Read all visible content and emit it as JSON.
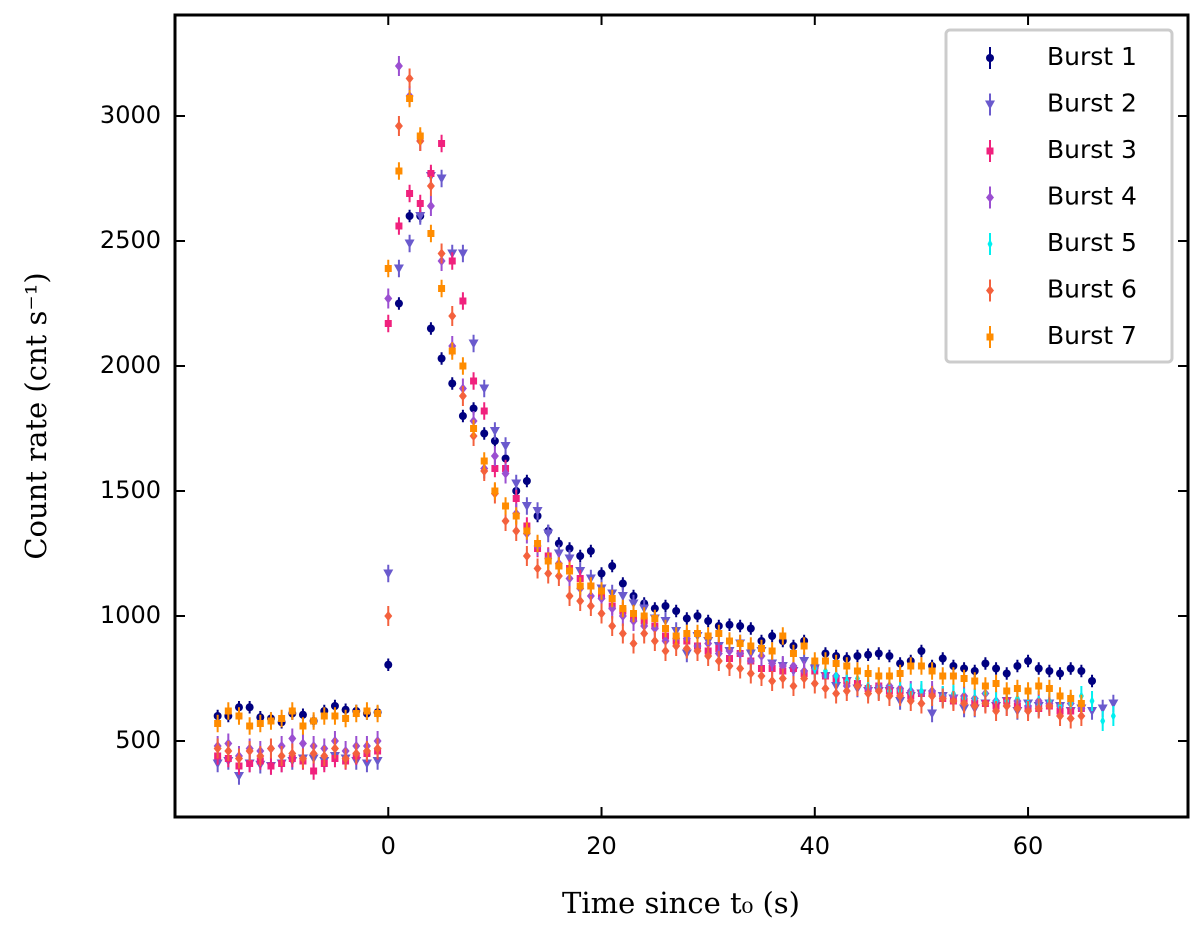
{
  "chart_data": {
    "type": "errorbar-scatter",
    "x_label": "Time since t₀ (s)",
    "y_label": "Count rate (cnt s⁻¹)",
    "xlim": [
      -20,
      75
    ],
    "ylim": [
      196,
      3404
    ],
    "xticks": [
      0,
      20,
      40,
      60
    ],
    "yticks": [
      500,
      1000,
      1500,
      2000,
      2500,
      3000
    ],
    "legend": "upper right",
    "x": [
      -16,
      -15,
      -14,
      -13,
      -12,
      -11,
      -10,
      -9,
      -8,
      -7,
      -6,
      -5,
      -4,
      -3,
      -2,
      -1,
      0,
      1,
      2,
      3,
      4,
      5,
      6,
      7,
      8,
      9,
      10,
      11,
      12,
      13,
      14,
      15,
      16,
      17,
      18,
      19,
      20,
      21,
      22,
      23,
      24,
      25,
      26,
      27,
      28,
      29,
      30,
      31,
      32,
      33,
      34,
      35,
      36,
      37,
      38,
      39,
      40,
      41,
      42,
      43,
      44,
      45,
      46,
      47,
      48,
      49,
      50,
      51,
      52,
      53,
      54,
      55,
      56,
      57,
      58,
      59,
      60,
      61,
      62,
      63,
      64,
      65,
      66,
      67,
      68
    ],
    "series": [
      {
        "name": "Burst 1",
        "color": "#000080",
        "marker": "circle",
        "yerr": 25,
        "values": [
          600,
          600,
          635,
          635,
          595,
          590,
          575,
          610,
          605,
          580,
          620,
          640,
          625,
          620,
          610,
          615,
          805,
          2250,
          2600,
          2600,
          2150,
          2030,
          1930,
          1800,
          1830,
          1730,
          1700,
          1630,
          1500,
          1540,
          1400,
          1340,
          1290,
          1270,
          1240,
          1260,
          1170,
          1200,
          1130,
          1080,
          1050,
          1030,
          1040,
          1020,
          990,
          1000,
          980,
          960,
          965,
          960,
          950,
          900,
          920,
          900,
          880,
          900,
          800,
          850,
          840,
          830,
          840,
          845,
          850,
          840,
          810,
          820,
          860,
          800,
          830,
          800,
          790,
          780,
          810,
          790,
          770,
          800,
          820,
          790,
          780,
          770,
          790,
          780,
          740,
          null,
          null
        ]
      },
      {
        "name": "Burst 2",
        "color": "#6a5acd",
        "marker": "triangle-down",
        "yerr": 35,
        "values": [
          410,
          420,
          360,
          410,
          405,
          400,
          410,
          420,
          430,
          430,
          420,
          440,
          430,
          420,
          410,
          420,
          1170,
          2390,
          2490,
          2600,
          2760,
          2750,
          2450,
          2450,
          2090,
          1910,
          1740,
          1680,
          1530,
          1440,
          1420,
          1330,
          1250,
          1230,
          1180,
          1150,
          1110,
          1090,
          1080,
          1050,
          1030,
          990,
          980,
          940,
          850,
          920,
          900,
          880,
          860,
          890,
          850,
          860,
          810,
          800,
          780,
          820,
          790,
          760,
          720,
          740,
          710,
          700,
          700,
          700,
          660,
          680,
          690,
          610,
          680,
          670,
          630,
          630,
          650,
          640,
          660,
          620,
          650,
          640,
          650,
          640,
          620,
          630,
          620,
          630,
          650
        ]
      },
      {
        "name": "Burst 3",
        "color": "#f0217d",
        "marker": "square",
        "yerr": 35,
        "values": [
          440,
          430,
          400,
          410,
          420,
          400,
          410,
          430,
          420,
          380,
          410,
          430,
          420,
          440,
          450,
          460,
          2170,
          2560,
          2690,
          2650,
          2770,
          2890,
          2420,
          2260,
          1940,
          1820,
          1590,
          1590,
          1470,
          1360,
          1270,
          1240,
          1200,
          1190,
          1150,
          1120,
          1080,
          1040,
          1020,
          990,
          980,
          960,
          920,
          900,
          900,
          880,
          860,
          870,
          830,
          850,
          820,
          790,
          790,
          780,
          790,
          770,
          780,
          760,
          750,
          740,
          730,
          710,
          720,
          700,
          700,
          680,
          690,
          690,
          670,
          660,
          660,
          650,
          650,
          640,
          660,
          640,
          630,
          630,
          640,
          620,
          620,
          630,
          null,
          null,
          null
        ]
      },
      {
        "name": "Burst 4",
        "color": "#9b4fd1",
        "marker": "diamond",
        "yerr": 40,
        "values": [
          480,
          490,
          440,
          470,
          460,
          470,
          480,
          510,
          490,
          480,
          470,
          500,
          460,
          480,
          480,
          500,
          2270,
          3200,
          3080,
          2900,
          2640,
          2420,
          2080,
          1910,
          1780,
          1590,
          1640,
          1570,
          1410,
          1330,
          1280,
          1230,
          1210,
          1150,
          1110,
          1080,
          1070,
          1030,
          1000,
          980,
          960,
          950,
          900,
          910,
          910,
          880,
          890,
          850,
          860,
          850,
          820,
          840,
          810,
          800,
          800,
          780,
          790,
          760,
          760,
          720,
          720,
          710,
          720,
          720,
          710,
          700,
          690,
          700,
          680,
          680,
          680,
          670,
          690,
          660,
          640,
          660,
          640,
          660,
          650,
          640,
          650,
          630,
          null,
          null,
          null
        ]
      },
      {
        "name": "Burst 5",
        "color": "#00f0f0",
        "marker": "thin-diamond",
        "yerr": 40,
        "values": [
          null,
          null,
          null,
          null,
          null,
          null,
          null,
          null,
          null,
          null,
          null,
          null,
          null,
          null,
          null,
          null,
          null,
          null,
          null,
          null,
          null,
          null,
          null,
          null,
          null,
          null,
          null,
          null,
          null,
          null,
          null,
          null,
          null,
          null,
          null,
          null,
          null,
          null,
          null,
          null,
          null,
          null,
          null,
          null,
          null,
          null,
          null,
          null,
          null,
          null,
          null,
          null,
          null,
          null,
          null,
          null,
          790,
          780,
          760,
          740,
          750,
          720,
          710,
          700,
          700,
          690,
          700,
          680,
          680,
          690,
          670,
          670,
          690,
          660,
          660,
          670,
          650,
          640,
          660,
          640,
          650,
          680,
          660,
          580,
          600
        ]
      },
      {
        "name": "Burst 6",
        "color": "#f4613d",
        "marker": "diamond",
        "yerr": 40,
        "values": [
          470,
          460,
          430,
          460,
          440,
          470,
          440,
          450,
          430,
          450,
          440,
          470,
          430,
          450,
          460,
          470,
          1000,
          2960,
          3150,
          2900,
          2720,
          2450,
          2200,
          1880,
          1720,
          1580,
          1490,
          1380,
          1340,
          1240,
          1190,
          1170,
          1160,
          1080,
          1060,
          1040,
          1010,
          960,
          930,
          890,
          930,
          900,
          860,
          880,
          870,
          860,
          840,
          820,
          800,
          790,
          770,
          760,
          740,
          750,
          720,
          750,
          730,
          710,
          690,
          700,
          720,
          690,
          700,
          680,
          680,
          660,
          650,
          680,
          670,
          660,
          650,
          640,
          650,
          620,
          640,
          630,
          620,
          630,
          640,
          600,
          590,
          600,
          null,
          null,
          null
        ]
      },
      {
        "name": "Burst 7",
        "color": "#ff8c00",
        "marker": "square",
        "yerr": 35,
        "values": [
          570,
          620,
          600,
          560,
          570,
          580,
          590,
          620,
          560,
          580,
          600,
          600,
          590,
          610,
          620,
          610,
          2390,
          2780,
          3070,
          2920,
          2530,
          2310,
          2060,
          2000,
          1750,
          1620,
          1500,
          1440,
          1400,
          1340,
          1290,
          1220,
          1200,
          1180,
          1120,
          1120,
          1100,
          1070,
          1030,
          1010,
          1000,
          990,
          950,
          920,
          930,
          930,
          920,
          930,
          900,
          890,
          880,
          870,
          860,
          920,
          850,
          880,
          820,
          820,
          810,
          800,
          780,
          770,
          760,
          760,
          770,
          800,
          800,
          780,
          760,
          760,
          750,
          740,
          720,
          730,
          700,
          710,
          700,
          720,
          710,
          680,
          670,
          650,
          null,
          null,
          null
        ]
      }
    ]
  }
}
